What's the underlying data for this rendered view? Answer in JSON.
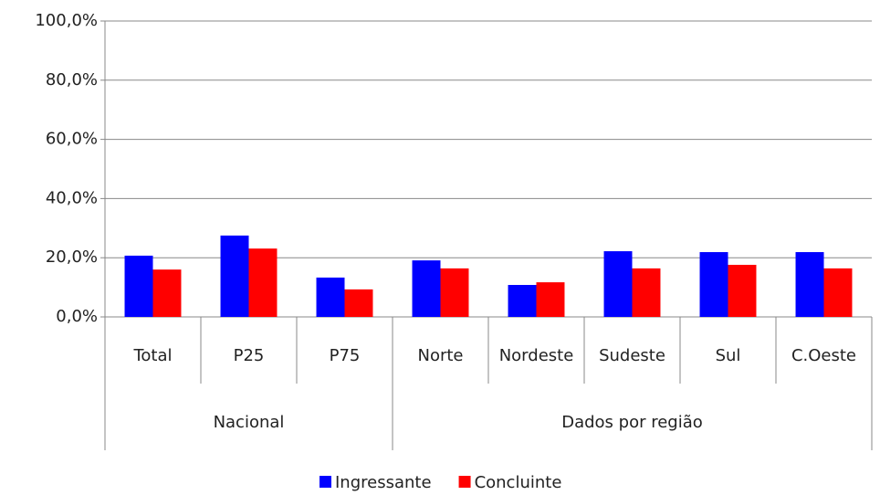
{
  "chart_data": {
    "type": "bar",
    "category_groups": [
      {
        "label": "Nacional",
        "categories": [
          "Total",
          "P25",
          "P75"
        ]
      },
      {
        "label": "Dados por região",
        "categories": [
          "Norte",
          "Nordeste",
          "Sudeste",
          "Sul",
          "C.Oeste"
        ]
      }
    ],
    "series": [
      {
        "name": "Ingressante",
        "color": "#0000ff",
        "values": [
          20.7,
          27.5,
          13.3,
          19.1,
          10.8,
          22.2,
          21.9,
          21.9
        ]
      },
      {
        "name": "Concluinte",
        "color": "#ff0000",
        "values": [
          16.0,
          23.1,
          9.3,
          16.4,
          11.7,
          16.4,
          17.6,
          16.4
        ]
      }
    ],
    "ylim": [
      0,
      100
    ],
    "yticks": [
      {
        "value": 0,
        "label": "0,0%"
      },
      {
        "value": 20,
        "label": "20,0%"
      },
      {
        "value": 40,
        "label": "40,0%"
      },
      {
        "value": 60,
        "label": "60,0%"
      },
      {
        "value": 80,
        "label": "80,0%"
      },
      {
        "value": 100,
        "label": "100,0%"
      }
    ],
    "grid": true,
    "legend": "bottom"
  }
}
